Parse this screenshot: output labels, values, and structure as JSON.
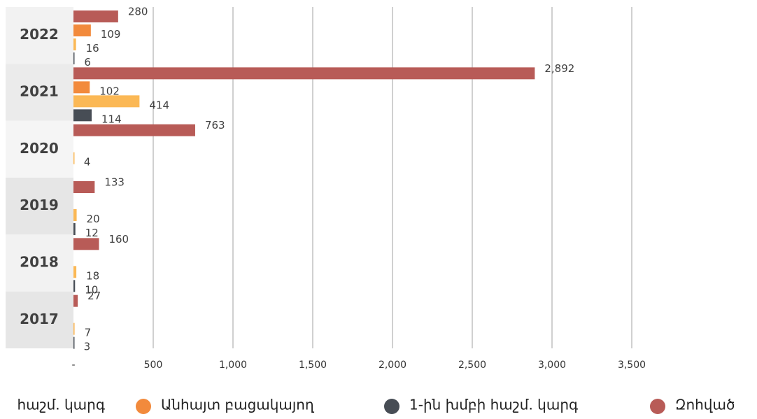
{
  "chart_data": {
    "type": "hbar",
    "categories": [
      "2022",
      "2021",
      "2020",
      "2019",
      "2018",
      "2017"
    ],
    "series": [
      {
        "name": "Զոհված",
        "color": "#b85b57",
        "values": [
          280,
          2892,
          763,
          133,
          160,
          27
        ],
        "value_labels": [
          "280",
          "2,892",
          "763",
          "133",
          "160",
          "27"
        ]
      },
      {
        "name": "Անհայտ բացակայող",
        "color": "#f28a3c",
        "values": [
          109,
          102,
          null,
          null,
          null,
          null
        ]
      },
      {
        "name": "հաշմ. կարգ",
        "color": "#fbb855",
        "values": [
          16,
          414,
          4,
          20,
          18,
          7
        ]
      },
      {
        "name": "1-ին խմբի հաշմ. կարգ",
        "color": "#474d55",
        "values": [
          6,
          114,
          null,
          12,
          10,
          3
        ]
      }
    ],
    "xlim": [
      0,
      4000
    ],
    "xticks": [
      {
        "value": 0,
        "label": "-"
      },
      500,
      {
        "value": 1000,
        "label": "1,000"
      },
      {
        "value": 1500,
        "label": "1,500"
      },
      {
        "value": 2000,
        "label": "2,000"
      },
      {
        "value": 2500,
        "label": "2,500"
      },
      {
        "value": 3000,
        "label": "3,000"
      },
      {
        "value": 3500,
        "label": "3,500"
      }
    ],
    "grid": true
  }
}
